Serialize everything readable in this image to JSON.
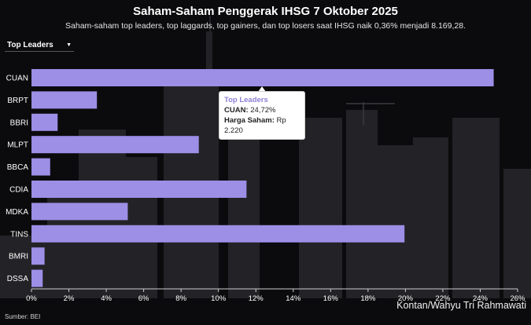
{
  "header": {
    "title": "Saham-Saham Penggerak IHSG 7 Oktober 2025",
    "subtitle": "Saham-saham top leaders, top laggards, top gainers, dan top losers saat IHSG naik 0,36% menjadi 8.169,28."
  },
  "filter": {
    "selected": "Top Leaders"
  },
  "tooltip": {
    "title": "Top Leaders",
    "line1_label": "CUAN:",
    "line1_value": "24,72%",
    "line2_label": "Harga Saham:",
    "line2_value": "Rp 2.220"
  },
  "footer": {
    "source": "Sumber: BEI",
    "credit": "Kontan/Wahyu Tri Rahmawati"
  },
  "colors": {
    "bar": "#9d8ee6",
    "background": "#0b0b0d",
    "skyline": "#2a2a2e"
  },
  "chart_data": {
    "type": "bar",
    "orientation": "horizontal",
    "categories": [
      "CUAN",
      "BRPT",
      "BBRI",
      "MLPT",
      "BBCA",
      "CDIA",
      "MDKA",
      "TINS",
      "BMRI",
      "DSSA"
    ],
    "values": [
      24.72,
      3.5,
      1.4,
      8.95,
      1.0,
      11.5,
      5.15,
      19.95,
      0.7,
      0.6
    ],
    "xlim": [
      0,
      26
    ],
    "xticks": [
      "0%",
      "2%",
      "4%",
      "6%",
      "8%",
      "10%",
      "12%",
      "14%",
      "16%",
      "18%",
      "20%",
      "22%",
      "24%",
      "26%"
    ],
    "xtick_values": [
      0,
      2,
      4,
      6,
      8,
      10,
      12,
      14,
      16,
      18,
      20,
      22,
      24,
      26
    ],
    "grid": false
  }
}
